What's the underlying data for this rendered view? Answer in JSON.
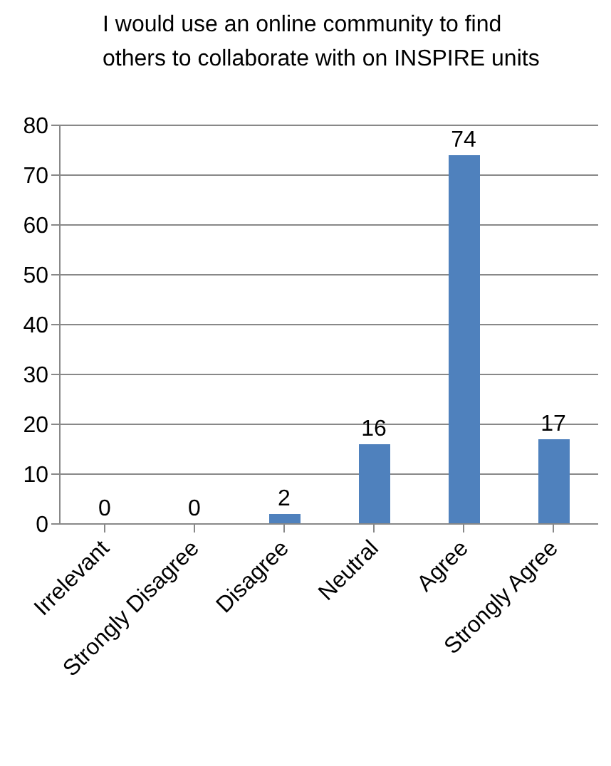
{
  "chart_data": {
    "type": "bar",
    "title": "I would use an online community to find others to collaborate with on INSPIRE units",
    "categories": [
      "Irrelevant",
      "Strongly Disagree",
      "Disagree",
      "Neutral",
      "Agree",
      "Strongly Agree"
    ],
    "values": [
      0,
      0,
      2,
      16,
      74,
      17
    ],
    "color": "#4f81bd",
    "ylim": [
      0,
      80
    ],
    "yticks": [
      0,
      10,
      20,
      30,
      40,
      50,
      60,
      70,
      80
    ],
    "grid": "y",
    "data_labels": true
  }
}
